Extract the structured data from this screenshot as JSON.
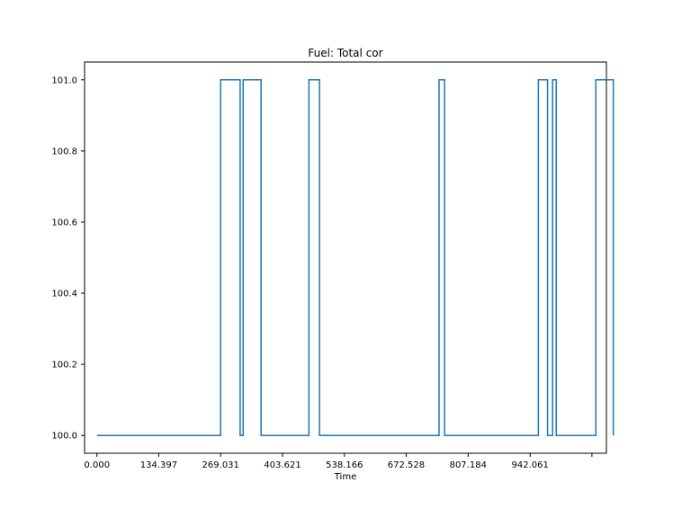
{
  "chart_data": {
    "type": "line",
    "step": "post",
    "title": "Fuel: Total cor",
    "xlabel": "Time",
    "ylabel": "",
    "xlim": [
      -26.9,
      1108.0
    ],
    "ylim": [
      99.95,
      101.05
    ],
    "xticks": [
      0,
      134.397,
      269.031,
      403.621,
      538.166,
      672.528,
      807.184,
      942.061,
      1076.5
    ],
    "xtick_labels": [
      "0.000",
      "134.397",
      "269.031",
      "403.621",
      "538.166",
      "672.528",
      "807.184",
      "942.061",
      ""
    ],
    "yticks": [
      100.0,
      100.2,
      100.4,
      100.6,
      100.8,
      101.0
    ],
    "ytick_labels": [
      "100.0",
      "100.2",
      "100.4",
      "100.6",
      "100.8",
      "101.0"
    ],
    "grid": false,
    "color": "#1f77b4",
    "series": [
      {
        "x": [
          0,
          269.0,
          311.5,
          318.0,
          357.0,
          461.0,
          484.0,
          744.0,
          756.0,
          960.0,
          980.0,
          991.0,
          999.0,
          1085.0,
          1123.0
        ],
        "y": [
          100.0,
          101.0,
          100.0,
          101.0,
          100.0,
          101.0,
          100.0,
          101.0,
          100.0,
          101.0,
          100.0,
          101.0,
          100.0,
          101.0,
          100.0
        ]
      }
    ]
  }
}
